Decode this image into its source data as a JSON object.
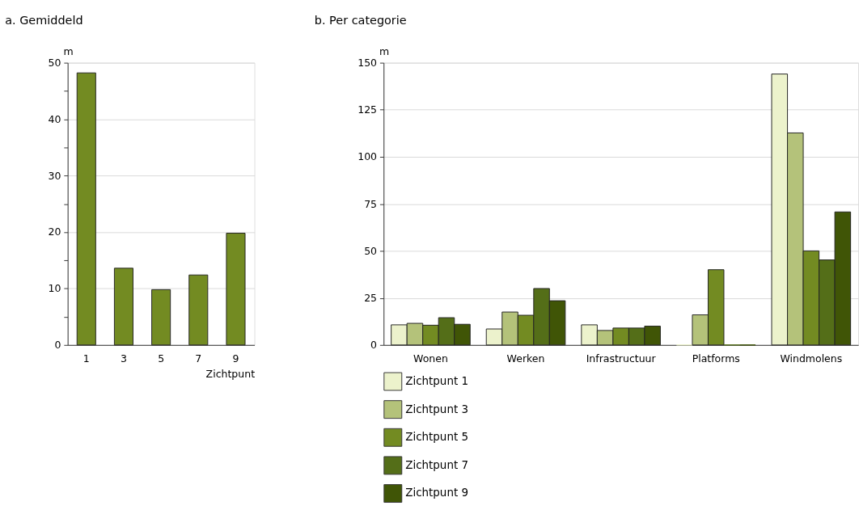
{
  "chart_data": [
    {
      "type": "bar",
      "title": "a. Gemiddeld",
      "ylabel": "m",
      "xlabel": "Zichtpunt",
      "categories": [
        "1",
        "3",
        "5",
        "7",
        "9"
      ],
      "values": [
        48.2,
        13.6,
        9.8,
        12.4,
        19.8
      ],
      "color": "#738b22",
      "ylim": [
        0,
        50
      ],
      "yticks": [
        0,
        {
          "value": 5,
          "label": null
        },
        10,
        {
          "value": 15,
          "label": null
        },
        20,
        {
          "value": 25,
          "label": null
        },
        30,
        {
          "value": 35,
          "label": null
        },
        40,
        {
          "value": 45,
          "label": null
        },
        50
      ],
      "grid": "y"
    },
    {
      "type": "bar",
      "title": "b. Per categorie",
      "ylabel": "m",
      "categories": [
        "Wonen",
        "Werken",
        "Infrastructuur",
        "Platforms",
        "Windmolens"
      ],
      "series": [
        {
          "name": "Zichtpunt 1",
          "color": "#ecf2cc",
          "values": [
            10.7,
            8.5,
            10.7,
            0,
            144
          ]
        },
        {
          "name": "Zichtpunt 3",
          "color": "#b4c27a",
          "values": [
            11.5,
            17.5,
            7.7,
            16,
            112.7
          ]
        },
        {
          "name": "Zichtpunt 5",
          "color": "#738b22",
          "values": [
            10.5,
            15.8,
            9,
            40,
            50
          ]
        },
        {
          "name": "Zichtpunt 7",
          "color": "#546e18",
          "values": [
            14.5,
            30,
            9,
            0,
            45.2
          ]
        },
        {
          "name": "Zichtpunt 9",
          "color": "#405506",
          "values": [
            11,
            23.5,
            10,
            0,
            70.7
          ]
        }
      ],
      "ylim": [
        0,
        150
      ],
      "yticks": [
        0,
        25,
        50,
        75,
        100,
        125,
        150
      ],
      "grid": "y",
      "legend": "bottom"
    }
  ]
}
